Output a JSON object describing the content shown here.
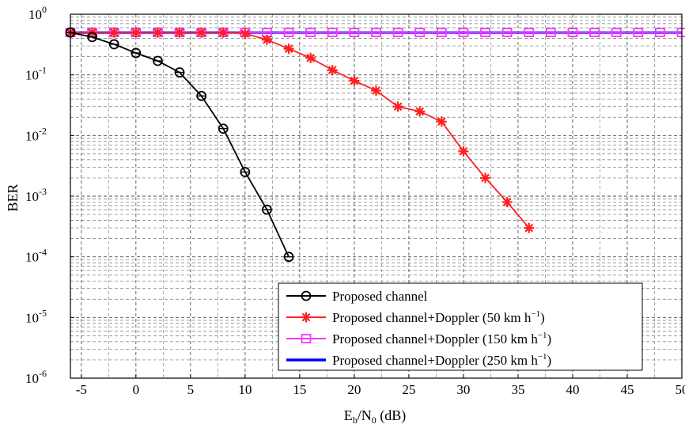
{
  "chart_data": {
    "type": "line",
    "xlabel_main": "E",
    "xlabel_sub1": "b",
    "xlabel_mid": "/N",
    "xlabel_sub2": "0",
    "xlabel_tail": " (dB)",
    "ylabel": "BER",
    "xlim": [
      -6,
      50
    ],
    "ylim": [
      1e-06,
      1
    ],
    "yscale": "log",
    "grid": true,
    "legend_position": "bottom-right",
    "x_ticks": [
      "-5",
      "0",
      "5",
      "10",
      "15",
      "20",
      "25",
      "30",
      "35",
      "40",
      "45",
      "50"
    ],
    "y_ticks": [
      {
        "base": "10",
        "exp": "0",
        "value": 1
      },
      {
        "base": "10",
        "exp": "-1",
        "value": 0.1
      },
      {
        "base": "10",
        "exp": "-2",
        "value": 0.01
      },
      {
        "base": "10",
        "exp": "-3",
        "value": 0.001
      },
      {
        "base": "10",
        "exp": "-4",
        "value": 0.0001
      },
      {
        "base": "10",
        "exp": "-5",
        "value": 1e-05
      },
      {
        "base": "10",
        "exp": "-6",
        "value": 1e-06
      }
    ],
    "series": [
      {
        "name": "Proposed channel",
        "name_sup": "",
        "name_tail": "",
        "color": "#000000",
        "marker": "circle",
        "x": [
          -6,
          -4,
          -2,
          0,
          2,
          4,
          6,
          8,
          10,
          12,
          14
        ],
        "y": [
          0.5,
          0.42,
          0.32,
          0.23,
          0.17,
          0.11,
          0.045,
          0.013,
          0.0025,
          0.0006,
          0.0001
        ]
      },
      {
        "name": "Proposed channel+Doppler (50 km h",
        "name_sup": "−1",
        "name_tail": ")",
        "color": "#ff2020",
        "marker": "star",
        "x": [
          -6,
          -4,
          -2,
          0,
          2,
          4,
          6,
          8,
          10,
          12,
          14,
          16,
          18,
          20,
          22,
          24,
          26,
          28,
          30,
          32,
          34,
          36
        ],
        "y": [
          0.5,
          0.5,
          0.5,
          0.5,
          0.5,
          0.5,
          0.5,
          0.5,
          0.48,
          0.38,
          0.27,
          0.19,
          0.12,
          0.08,
          0.055,
          0.03,
          0.025,
          0.017,
          0.0055,
          0.002,
          0.0008,
          0.0003
        ]
      },
      {
        "name": "Proposed channel+Doppler (150 km h",
        "name_sup": "−1",
        "name_tail": ")",
        "color": "#ff33ff",
        "marker": "square",
        "x": [
          -6,
          -4,
          -2,
          0,
          2,
          4,
          6,
          8,
          10,
          12,
          14,
          16,
          18,
          20,
          22,
          24,
          26,
          28,
          30,
          32,
          34,
          36,
          38,
          40,
          42,
          44,
          46,
          48,
          50
        ],
        "y": [
          0.5,
          0.5,
          0.5,
          0.5,
          0.5,
          0.5,
          0.5,
          0.5,
          0.5,
          0.5,
          0.5,
          0.5,
          0.5,
          0.5,
          0.5,
          0.5,
          0.5,
          0.5,
          0.5,
          0.5,
          0.5,
          0.5,
          0.5,
          0.5,
          0.5,
          0.5,
          0.5,
          0.5,
          0.5
        ]
      },
      {
        "name": "Proposed channel+Doppler (250 km h",
        "name_sup": "−1",
        "name_tail": ")",
        "color": "#0000ff",
        "marker": "none",
        "x": [
          -6,
          50
        ],
        "y": [
          0.5,
          0.5
        ]
      }
    ]
  }
}
